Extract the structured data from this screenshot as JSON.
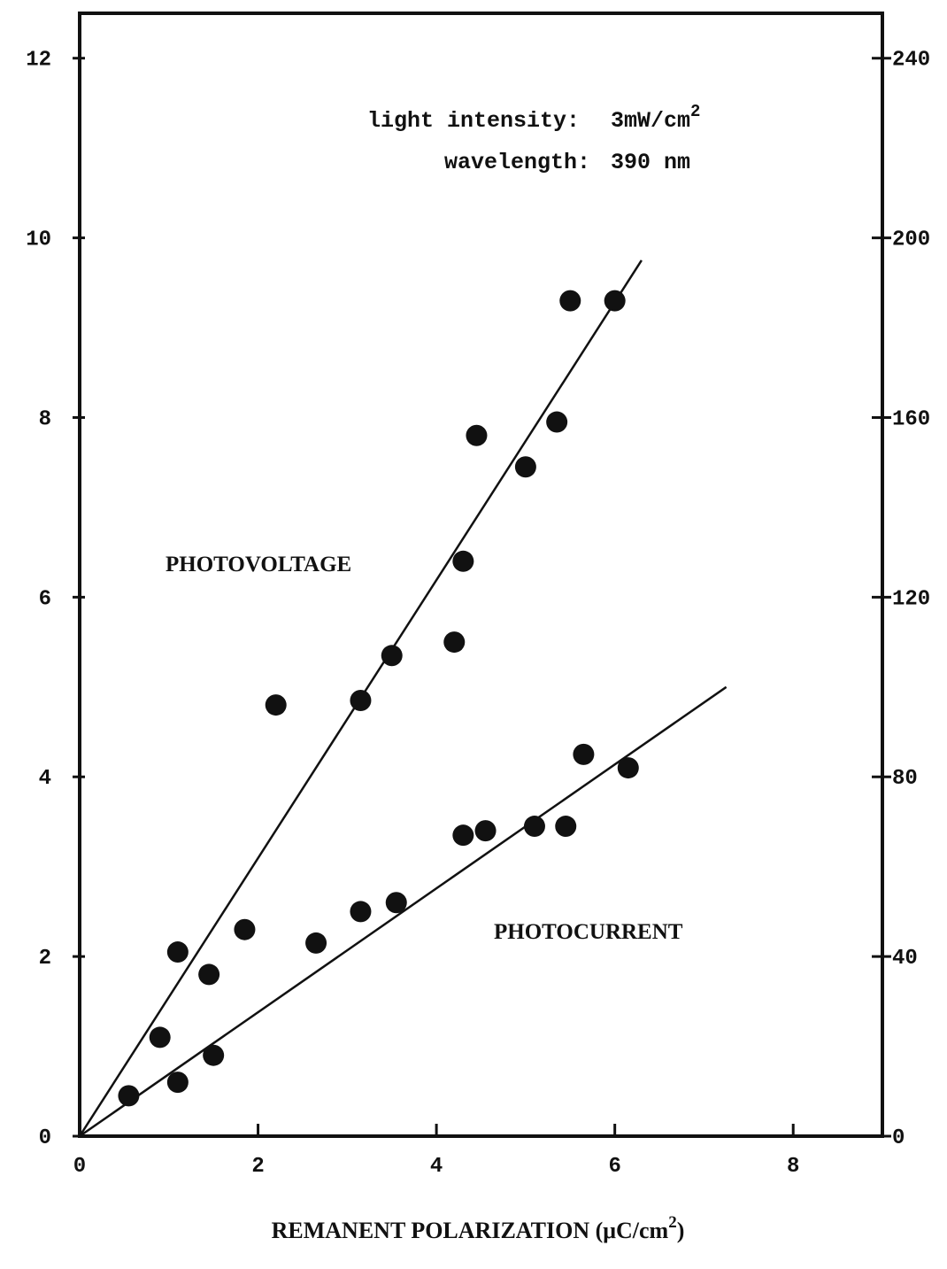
{
  "chart_data": {
    "type": "scatter",
    "xlabel": "REMANENT POLARIZATION (μC/cm2)",
    "xlabel_parts": {
      "main": "REMANENT POLARIZATION (μC/cm",
      "sup": "2",
      "end": ")"
    },
    "xlim": [
      0,
      9
    ],
    "ylim": [
      0,
      12.5
    ],
    "y2lim": [
      0,
      250
    ],
    "x_ticks": [
      0,
      2,
      4,
      6,
      8
    ],
    "x_tick_labels": [
      "0",
      "2",
      "4",
      "6",
      "8"
    ],
    "y_ticks": [
      0,
      2,
      4,
      6,
      8,
      10,
      12
    ],
    "y_tick_labels": [
      "0",
      "2",
      "4",
      "6",
      "8",
      "10",
      "12"
    ],
    "y2_ticks": [
      0,
      40,
      80,
      120,
      160,
      200,
      240
    ],
    "y2_tick_labels": [
      "0",
      "40",
      "80",
      "120",
      "160",
      "200",
      "240"
    ],
    "grid": false,
    "annotations": {
      "intensity_label": "light intensity:",
      "intensity_value": "3mW/cm",
      "intensity_sup": "2",
      "wavelength_label": "wavelength:",
      "wavelength_value": "390 nm"
    },
    "series": [
      {
        "name": "PHOTOVOLTAGE",
        "axis": "left",
        "x": [
          0.9,
          1.1,
          1.45,
          1.85,
          2.2,
          3.15,
          3.5,
          4.2,
          4.3,
          4.45,
          5.0,
          5.35,
          5.5,
          6.0
        ],
        "y": [
          1.1,
          2.05,
          1.8,
          2.3,
          4.8,
          4.85,
          5.35,
          5.5,
          6.4,
          7.8,
          7.45,
          7.95,
          9.3,
          9.3
        ],
        "fit": {
          "x": [
            0,
            6.3
          ],
          "y": [
            0,
            9.75
          ]
        }
      },
      {
        "name": "PHOTOCURRENT",
        "axis": "left",
        "x": [
          0.55,
          1.1,
          1.5,
          2.65,
          3.15,
          3.55,
          4.3,
          4.55,
          5.1,
          5.45,
          5.65,
          6.15
        ],
        "y": [
          0.45,
          0.6,
          0.9,
          2.15,
          2.5,
          2.6,
          3.35,
          3.4,
          3.45,
          3.45,
          4.25,
          4.1
        ],
        "fit": {
          "x": [
            0,
            7.25
          ],
          "y": [
            0,
            5.0
          ]
        }
      }
    ]
  }
}
